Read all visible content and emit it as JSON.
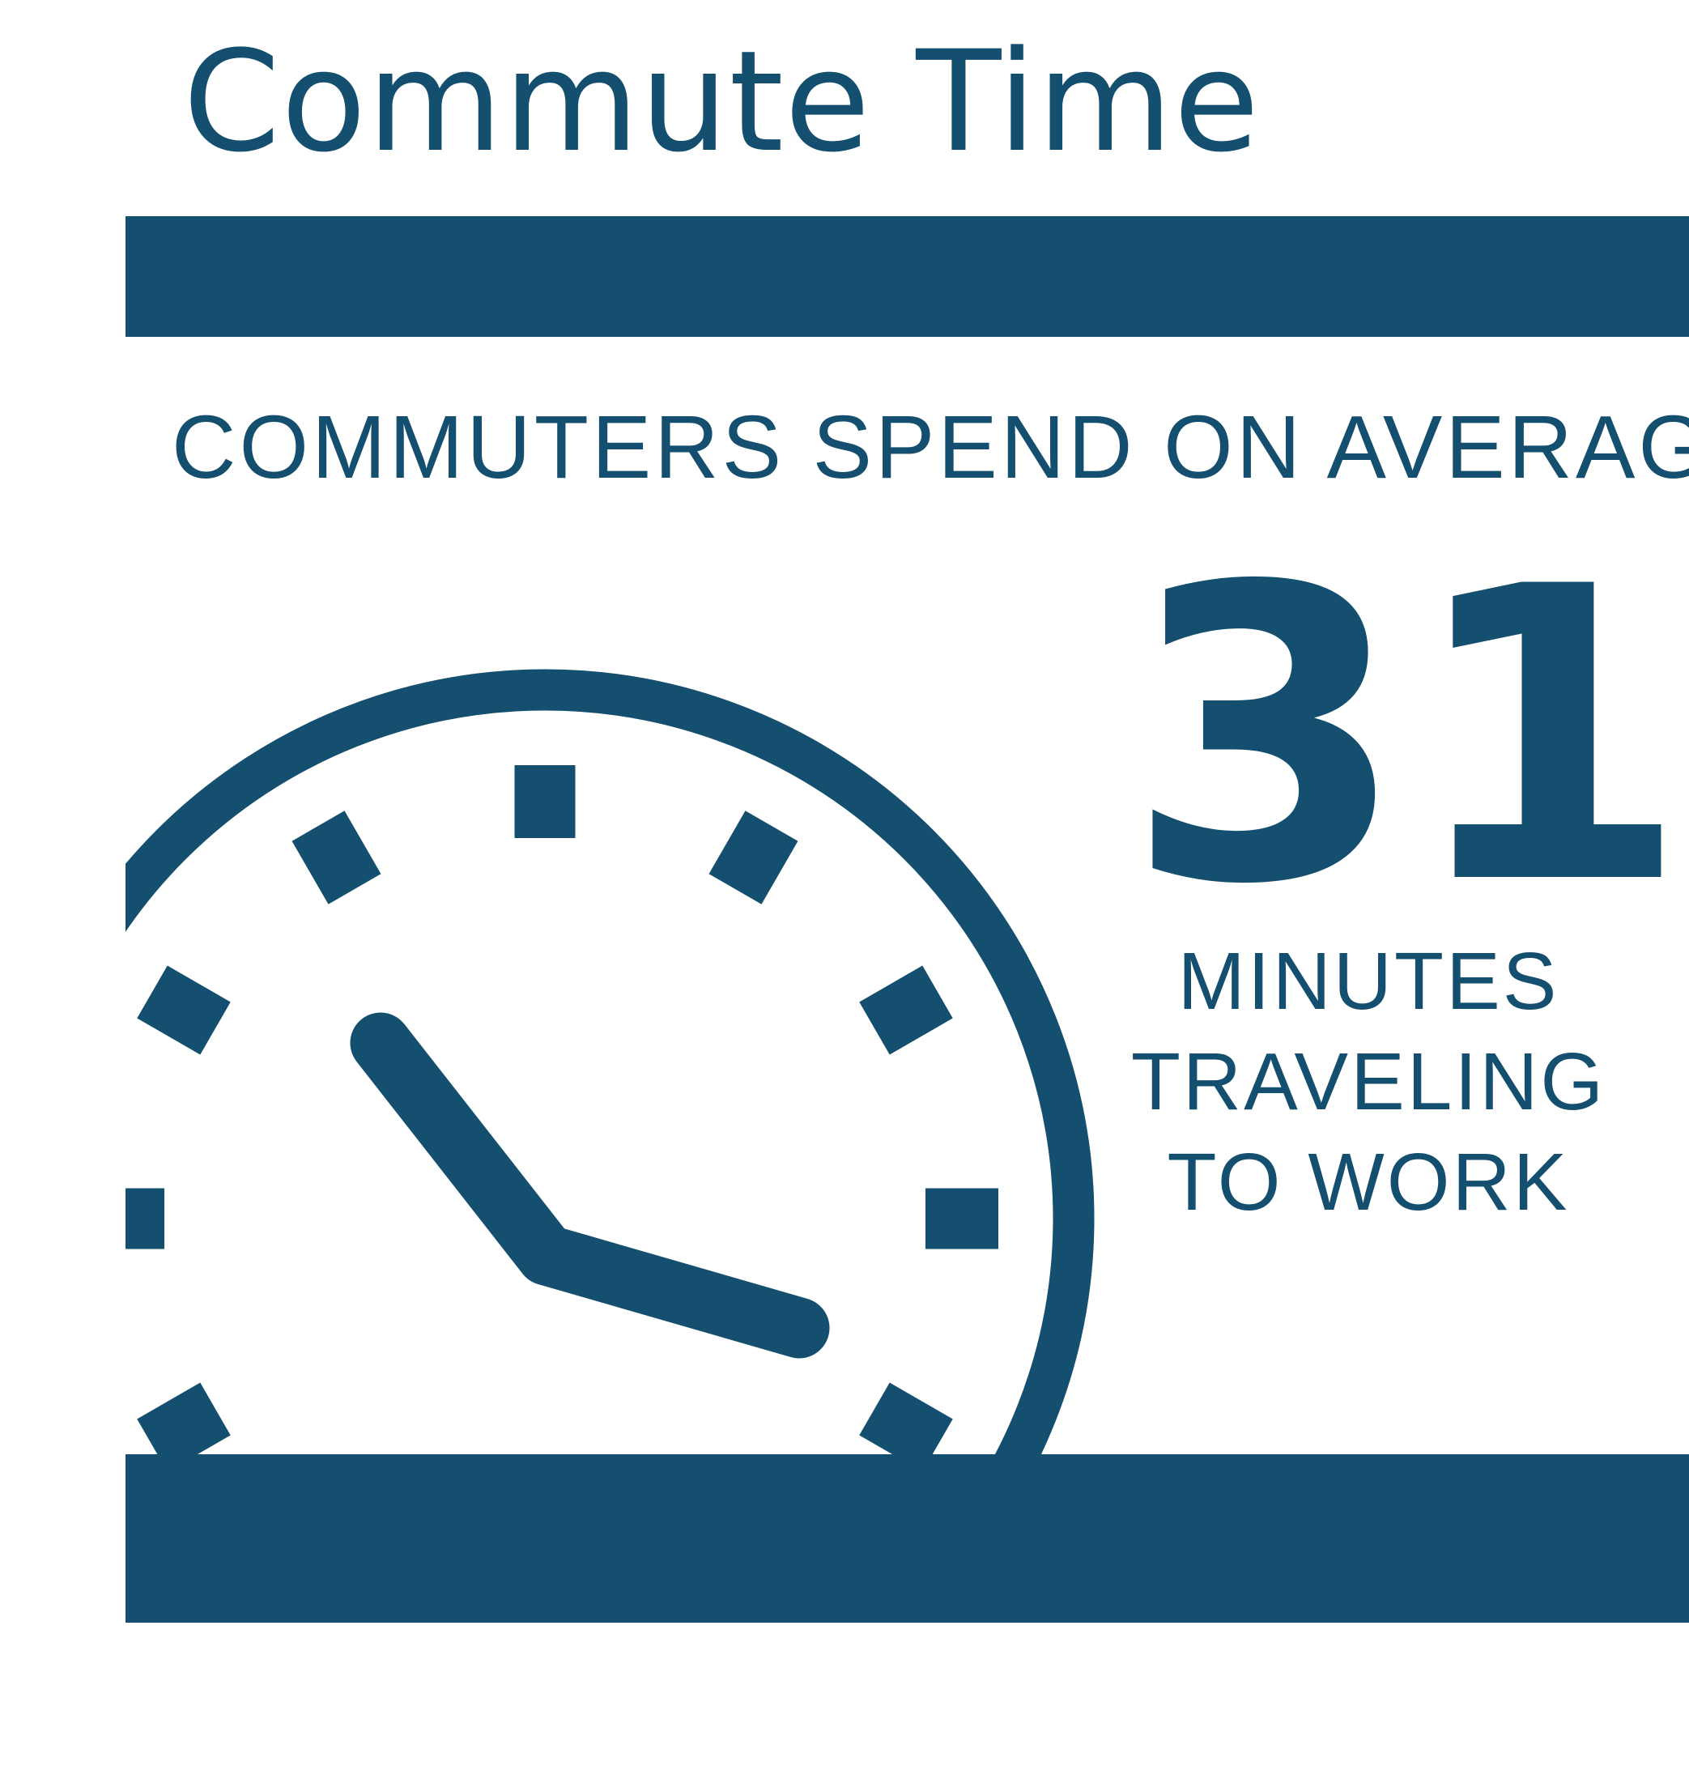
{
  "title": "Commute Time",
  "headline": "COMMUTERS SPEND ON AVERAGE",
  "stat": {
    "value": "31",
    "caption_lines": [
      "MINUTES",
      "TRAVELING",
      "TO WORK"
    ]
  },
  "colors": {
    "primary": "#154f6f",
    "background": "#ffffff"
  },
  "icons": [
    "clock-icon"
  ]
}
